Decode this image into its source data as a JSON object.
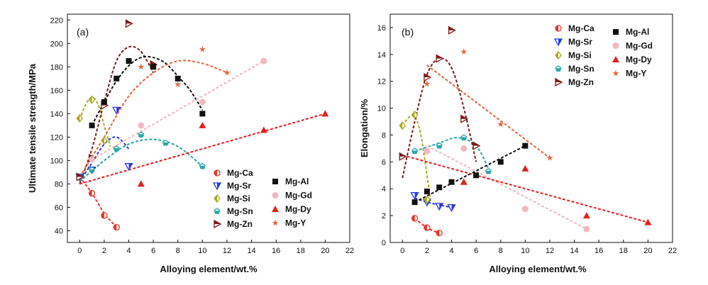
{
  "colors": {
    "Mg-Ca": "#e8332a",
    "Mg-Sr": "#2a3cd6",
    "Mg-Si": "#a8a820",
    "Mg-Sn": "#2aa6a6",
    "Mg-Zn": "#7a1a1a",
    "Mg-Al": "#111111",
    "Mg-Gd": "#f2b8c0",
    "Mg-Dy": "#e02020",
    "Mg-Y": "#e0663a"
  },
  "chart_data": [
    {
      "type": "scatter",
      "panel_label": "(a)",
      "xlabel": "Alloying element/wt.%",
      "ylabel": "Ultimate tensile strength/MPa",
      "xlim": [
        -1,
        22
      ],
      "ylim": [
        30,
        225
      ],
      "xticks": [
        "0",
        "2",
        "4",
        "6",
        "8",
        "10",
        "12",
        "14",
        "16",
        "18",
        "20",
        "22"
      ],
      "yticks": [
        "40",
        "60",
        "80",
        "100",
        "120",
        "140",
        "160",
        "180",
        "200",
        "220"
      ],
      "legend": [
        {
          "name": "Mg-Ca",
          "marker": "circle-half"
        },
        {
          "name": "Mg-Sr",
          "marker": "tri-down"
        },
        {
          "name": "Mg-Si",
          "marker": "diamond"
        },
        {
          "name": "Mg-Sn",
          "marker": "pentagon"
        },
        {
          "name": "Mg-Zn",
          "marker": "tri-right"
        },
        {
          "name": "Mg-Al",
          "marker": "square"
        },
        {
          "name": "Mg-Gd",
          "marker": "circle"
        },
        {
          "name": "Mg-Dy",
          "marker": "triangle"
        },
        {
          "name": "Mg-Y",
          "marker": "star"
        }
      ],
      "series": [
        {
          "name": "Mg-Ca",
          "points": [
            [
              0,
              86
            ],
            [
              1,
              72
            ],
            [
              2,
              53
            ],
            [
              3,
              43
            ]
          ],
          "fit": [
            [
              0,
              86
            ],
            [
              1,
              72
            ],
            [
              2,
              55
            ],
            [
              3,
              43
            ]
          ]
        },
        {
          "name": "Mg-Sr",
          "points": [
            [
              0,
              86
            ],
            [
              1,
              92
            ],
            [
              3,
              143
            ],
            [
              4,
              95
            ]
          ],
          "fit": [
            [
              0,
              82
            ],
            [
              1,
              98
            ],
            [
              2,
              114
            ],
            [
              3,
              120
            ],
            [
              4,
              110
            ]
          ]
        },
        {
          "name": "Mg-Si",
          "points": [
            [
              0,
              136
            ],
            [
              1,
              152
            ],
            [
              2,
              117
            ]
          ],
          "fit": [
            [
              0,
              135
            ],
            [
              0.5,
              148
            ],
            [
              1,
              154
            ],
            [
              1.5,
              148
            ],
            [
              2,
              130
            ],
            [
              2.5,
              112
            ]
          ]
        },
        {
          "name": "Mg-Sn",
          "points": [
            [
              0,
              86
            ],
            [
              1,
              92
            ],
            [
              3,
              110
            ],
            [
              5,
              122
            ],
            [
              7,
              115
            ],
            [
              10,
              95
            ]
          ],
          "fit": [
            [
              0,
              82
            ],
            [
              2,
              100
            ],
            [
              4,
              114
            ],
            [
              6,
              118
            ],
            [
              8,
              112
            ],
            [
              10,
              95
            ]
          ]
        },
        {
          "name": "Mg-Zn",
          "points": [
            [
              0,
              86
            ],
            [
              1,
              102
            ],
            [
              2,
              147
            ],
            [
              4,
              217
            ],
            [
              6,
              182
            ]
          ],
          "fit": [
            [
              0,
              80
            ],
            [
              1,
              110
            ],
            [
              2,
              150
            ],
            [
              3,
              185
            ],
            [
              4,
              197
            ],
            [
              5,
              193
            ],
            [
              6,
              175
            ]
          ]
        },
        {
          "name": "Mg-Al",
          "points": [
            [
              1,
              130
            ],
            [
              2,
              150
            ],
            [
              3,
              170
            ],
            [
              4,
              185
            ],
            [
              6,
              180
            ],
            [
              8,
              170
            ],
            [
              10,
              140
            ]
          ],
          "fit": [
            [
              1,
              130
            ],
            [
              2,
              150
            ],
            [
              3,
              168
            ],
            [
              4,
              181
            ],
            [
              5,
              188
            ],
            [
              6,
              188
            ],
            [
              7,
              183
            ],
            [
              8,
              172
            ],
            [
              9,
              160
            ],
            [
              10,
              143
            ]
          ]
        },
        {
          "name": "Mg-Gd",
          "points": [
            [
              1,
              101
            ],
            [
              5,
              130
            ],
            [
              10,
              150
            ],
            [
              15,
              185
            ]
          ],
          "fit": [
            [
              1,
              101
            ],
            [
              15,
              185
            ]
          ]
        },
        {
          "name": "Mg-Dy",
          "points": [
            [
              5,
              80
            ],
            [
              10,
              130
            ],
            [
              15,
              126
            ],
            [
              20,
              140
            ]
          ],
          "fit": [
            [
              0,
              80
            ],
            [
              20,
              140
            ]
          ]
        },
        {
          "name": "Mg-Y",
          "points": [
            [
              5,
              180
            ],
            [
              8,
              165
            ],
            [
              10,
              195
            ],
            [
              12,
              175
            ]
          ],
          "fit": [
            [
              0,
              86
            ],
            [
              2,
              120
            ],
            [
              4,
              155
            ],
            [
              6,
              175
            ],
            [
              8,
              185
            ],
            [
              10,
              183
            ],
            [
              12,
              175
            ]
          ]
        }
      ]
    },
    {
      "type": "scatter",
      "panel_label": "(b)",
      "xlabel": "Alloying element/wt.%",
      "ylabel": "Elongation/%",
      "xlim": [
        -1,
        22
      ],
      "ylim": [
        0,
        17
      ],
      "xticks": [
        "0",
        "2",
        "4",
        "6",
        "8",
        "10",
        "12",
        "14",
        "16",
        "18",
        "20",
        "22"
      ],
      "yticks": [
        "0",
        "2",
        "4",
        "6",
        "8",
        "10",
        "12",
        "14",
        "16"
      ],
      "legend": [
        {
          "name": "Mg-Ca",
          "marker": "circle-half"
        },
        {
          "name": "Mg-Sr",
          "marker": "tri-down"
        },
        {
          "name": "Mg-Si",
          "marker": "diamond"
        },
        {
          "name": "Mg-Sn",
          "marker": "pentagon"
        },
        {
          "name": "Mg-Zn",
          "marker": "tri-right"
        },
        {
          "name": "Mg-Al",
          "marker": "square"
        },
        {
          "name": "Mg-Gd",
          "marker": "circle"
        },
        {
          "name": "Mg-Dy",
          "marker": "triangle"
        },
        {
          "name": "Mg-Y",
          "marker": "star"
        }
      ],
      "series": [
        {
          "name": "Mg-Ca",
          "points": [
            [
              1,
              1.8
            ],
            [
              2,
              1.1
            ],
            [
              3,
              0.7
            ]
          ],
          "fit": [
            [
              1,
              1.8
            ],
            [
              2,
              1.1
            ],
            [
              3,
              0.7
            ]
          ]
        },
        {
          "name": "Mg-Sr",
          "points": [
            [
              1,
              3.5
            ],
            [
              2,
              3
            ],
            [
              3,
              2.7
            ],
            [
              4,
              2.6
            ]
          ],
          "fit": [
            [
              1,
              3.3
            ],
            [
              2,
              3
            ],
            [
              3,
              2.8
            ],
            [
              4,
              2.6
            ]
          ]
        },
        {
          "name": "Mg-Si",
          "points": [
            [
              0,
              8.7
            ],
            [
              1,
              9.5
            ],
            [
              2,
              3.2
            ]
          ],
          "fit": [
            [
              0,
              8.7
            ],
            [
              0.5,
              9.3
            ],
            [
              1,
              9.4
            ],
            [
              1.5,
              8
            ],
            [
              2,
              5
            ],
            [
              2.3,
              3
            ]
          ]
        },
        {
          "name": "Mg-Sn",
          "points": [
            [
              1,
              6.8
            ],
            [
              3,
              7.2
            ],
            [
              5,
              7.8
            ],
            [
              7,
              5.3
            ]
          ],
          "fit": [
            [
              1,
              6.8
            ],
            [
              3,
              7.4
            ],
            [
              4.5,
              7.8
            ],
            [
              6,
              7.2
            ],
            [
              7,
              5.5
            ]
          ]
        },
        {
          "name": "Mg-Zn",
          "points": [
            [
              0,
              6.4
            ],
            [
              2,
              12.3
            ],
            [
              3,
              13.7
            ],
            [
              4,
              15.8
            ],
            [
              5,
              9.2
            ],
            [
              6,
              7.2
            ]
          ],
          "fit": [
            [
              0,
              4.8
            ],
            [
              1,
              9
            ],
            [
              2,
              12.5
            ],
            [
              3,
              13.7
            ],
            [
              4,
              13
            ],
            [
              5,
              10
            ],
            [
              6,
              6
            ]
          ]
        },
        {
          "name": "Mg-Al",
          "points": [
            [
              1,
              3
            ],
            [
              2,
              3.8
            ],
            [
              3,
              4.1
            ],
            [
              4,
              4.5
            ],
            [
              6,
              5
            ],
            [
              8,
              6
            ],
            [
              10,
              7.2
            ]
          ],
          "fit": [
            [
              1,
              3
            ],
            [
              10,
              7.2
            ]
          ]
        },
        {
          "name": "Mg-Gd",
          "points": [
            [
              2,
              6.8
            ],
            [
              5,
              7
            ],
            [
              10,
              2.5
            ],
            [
              15,
              1
            ]
          ],
          "fit": [
            [
              2,
              7.2
            ],
            [
              15,
              1
            ]
          ]
        },
        {
          "name": "Mg-Dy",
          "points": [
            [
              5,
              4.5
            ],
            [
              10,
              5.5
            ],
            [
              15,
              2
            ],
            [
              20,
              1.5
            ]
          ],
          "fit": [
            [
              0,
              6.5
            ],
            [
              20,
              1.5
            ]
          ]
        },
        {
          "name": "Mg-Y",
          "points": [
            [
              2,
              11.8
            ],
            [
              5,
              14.2
            ],
            [
              8,
              8.8
            ],
            [
              12,
              6.3
            ]
          ],
          "fit": [
            [
              2,
              13.2
            ],
            [
              12,
              6.3
            ]
          ]
        }
      ]
    }
  ]
}
